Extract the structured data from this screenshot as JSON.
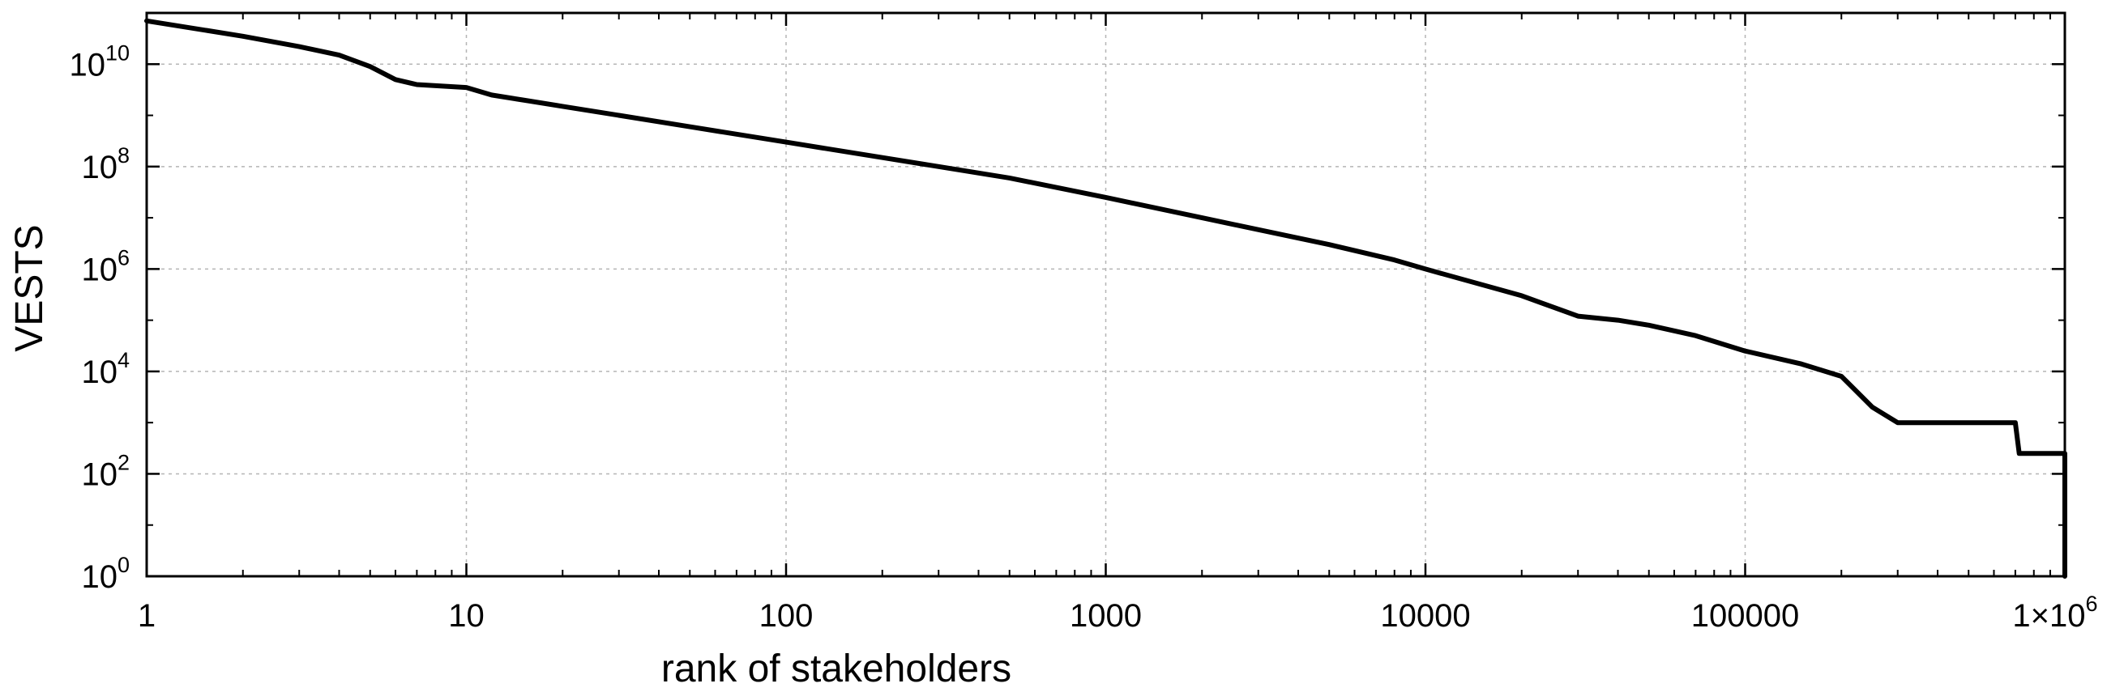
{
  "chart_data": {
    "type": "line",
    "title": "",
    "xlabel": "rank of stakeholders",
    "ylabel": "VESTS",
    "x_scale": "log",
    "y_scale": "log",
    "xlim": [
      1,
      1000000
    ],
    "ylim": [
      1,
      100000000000
    ],
    "grid": true,
    "legend": "none",
    "line_color": "#000000",
    "x_ticks": [
      {
        "value": 1,
        "label": "1"
      },
      {
        "value": 10,
        "label": "10"
      },
      {
        "value": 100,
        "label": "100"
      },
      {
        "value": 1000,
        "label": "1000"
      },
      {
        "value": 10000,
        "label": "10000"
      },
      {
        "value": 100000,
        "label": "100000"
      },
      {
        "value": 1000000,
        "label": "1×10",
        "exp": "6"
      }
    ],
    "y_ticks": [
      {
        "value": 1,
        "base": "10",
        "exp": "0"
      },
      {
        "value": 100,
        "base": "10",
        "exp": "2"
      },
      {
        "value": 10000,
        "base": "10",
        "exp": "4"
      },
      {
        "value": 1000000,
        "base": "10",
        "exp": "6"
      },
      {
        "value": 100000000,
        "base": "10",
        "exp": "8"
      },
      {
        "value": 10000000000,
        "base": "10",
        "exp": "10"
      }
    ],
    "series": [
      {
        "x": [
          1,
          2,
          3,
          4,
          5,
          6,
          7,
          10,
          12,
          15,
          20,
          30,
          50,
          100,
          200,
          300,
          500,
          1000,
          2000,
          5000,
          8000,
          10000,
          20000,
          30000,
          40000,
          50000,
          70000,
          100000,
          150000,
          200000,
          250000,
          300000,
          700000,
          720000,
          1000000,
          1010000,
          1015000
        ],
        "y": [
          70000000000,
          35000000000,
          22000000000,
          15000000000,
          9000000000,
          5000000000,
          4000000000,
          3500000000,
          2500000000,
          2000000000,
          1500000000,
          1000000000,
          600000000,
          300000000,
          150000000,
          100000000,
          60000000,
          25000000,
          10000000,
          3000000,
          1500000,
          1000000,
          300000,
          120000,
          100000,
          80000,
          50000,
          25000,
          14000,
          8000,
          2000,
          1000,
          1000,
          250,
          250,
          5,
          1
        ]
      }
    ]
  }
}
